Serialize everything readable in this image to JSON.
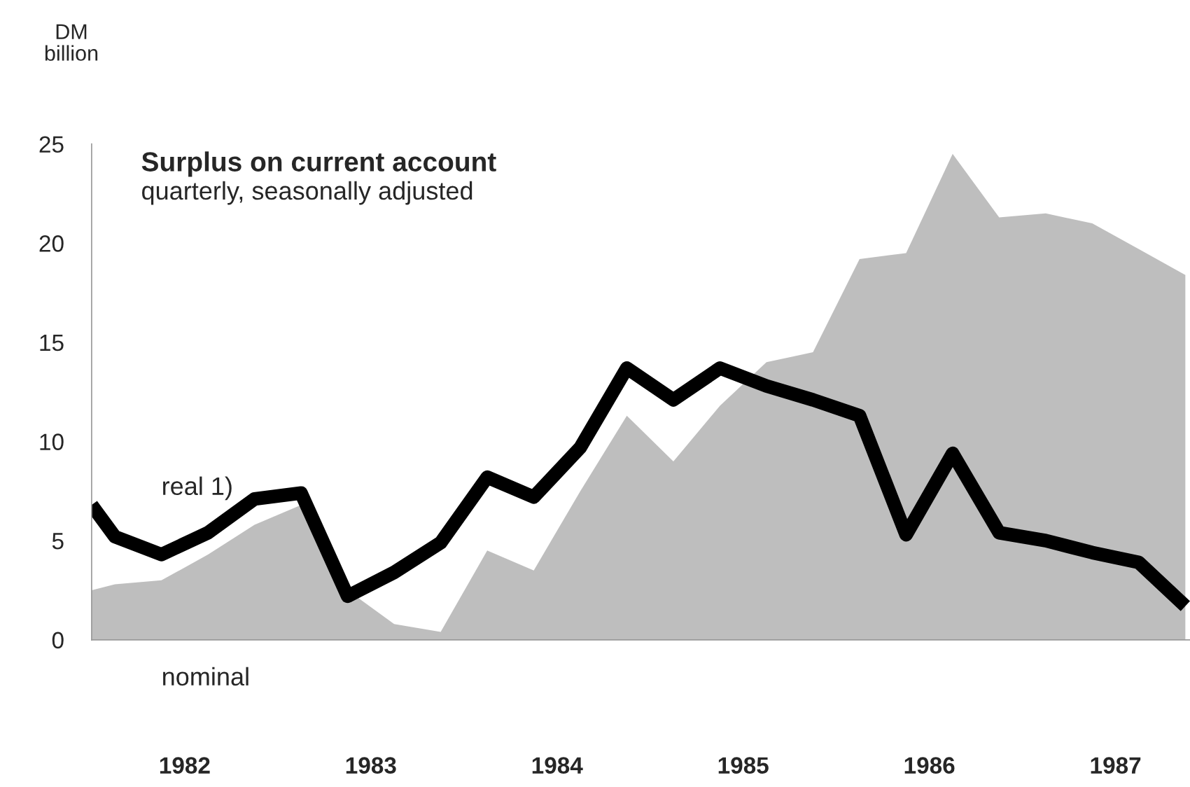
{
  "chart_data": {
    "type": "line",
    "title": "Surplus on current account",
    "subtitle": "quarterly, seasonally adjusted",
    "ylabel": "DM\nbillion",
    "x": [
      1982.0,
      1982.125,
      1982.375,
      1982.625,
      1982.875,
      1983.125,
      1983.375,
      1983.625,
      1983.875,
      1984.125,
      1984.375,
      1984.625,
      1984.875,
      1985.125,
      1985.375,
      1985.625,
      1985.875,
      1986.125,
      1986.375,
      1986.625,
      1986.875,
      1987.125,
      1987.375,
      1987.625,
      1987.875
    ],
    "series": [
      {
        "name": "nominal",
        "type": "area",
        "color": "#a8a8a8",
        "values": [
          2.5,
          2.8,
          3.0,
          4.3,
          5.8,
          6.8,
          2.5,
          0.8,
          0.4,
          4.5,
          3.5,
          7.5,
          11.3,
          9.0,
          11.8,
          14.0,
          14.5,
          19.2,
          19.5,
          24.5,
          21.3,
          21.5,
          21.0,
          19.7,
          18.4
        ]
      },
      {
        "name": "real 1)",
        "type": "line",
        "color": "#000000",
        "values": [
          6.8,
          5.2,
          4.3,
          5.4,
          7.1,
          7.4,
          2.2,
          3.4,
          4.9,
          8.2,
          7.2,
          9.7,
          13.7,
          12.1,
          13.7,
          12.8,
          12.1,
          11.3,
          5.3,
          9.4,
          5.4,
          5.0,
          4.4,
          3.9,
          1.7
        ]
      }
    ],
    "xlim": [
      1982.0,
      1987.9
    ],
    "ylim": [
      0,
      25
    ],
    "xticks": [
      {
        "value": 1982.5,
        "label": "1982"
      },
      {
        "value": 1983.5,
        "label": "1983"
      },
      {
        "value": 1984.5,
        "label": "1984"
      },
      {
        "value": 1985.5,
        "label": "1985"
      },
      {
        "value": 1986.5,
        "label": "1986"
      },
      {
        "value": 1987.5,
        "label": "1987"
      }
    ],
    "yticks": [
      0,
      5,
      10,
      15,
      20,
      25
    ],
    "grid": false,
    "legend": false,
    "line_style": "solid",
    "marker": "none"
  }
}
